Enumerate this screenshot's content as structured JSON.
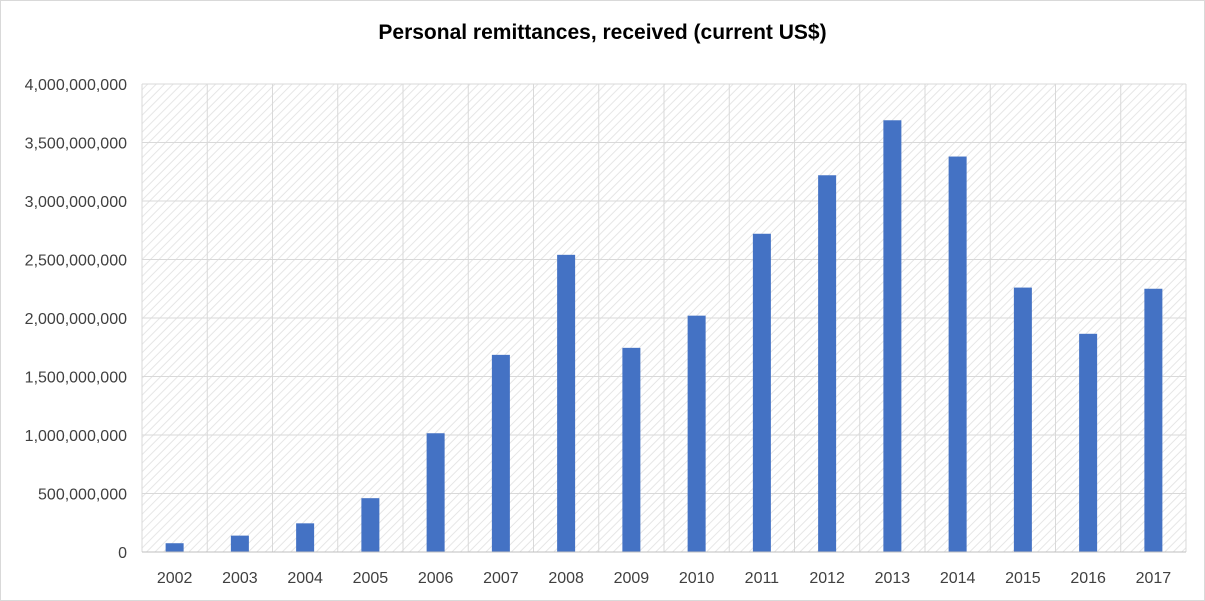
{
  "chart_data": {
    "type": "bar",
    "title": "Personal remittances, received (current US$)",
    "xlabel": "",
    "ylabel": "",
    "categories": [
      "2002",
      "2003",
      "2004",
      "2005",
      "2006",
      "2007",
      "2008",
      "2009",
      "2010",
      "2011",
      "2012",
      "2013",
      "2014",
      "2015",
      "2016",
      "2017"
    ],
    "series": [
      {
        "values": [
          75000000,
          140000000,
          245000000,
          460000000,
          1015000000,
          1685000000,
          2540000000,
          1745000000,
          2020000000,
          2720000000,
          3220000000,
          3690000000,
          3380000000,
          2260000000,
          1865000000,
          2250000000
        ],
        "color": "#4472c4"
      }
    ],
    "ylim": [
      0,
      4000000000
    ],
    "yticks": [
      0,
      500000000,
      1000000000,
      1500000000,
      2000000000,
      2500000000,
      3000000000,
      3500000000,
      4000000000
    ],
    "ytick_labels": [
      "0",
      "500,000,000",
      "1,000,000,000",
      "1,500,000,000",
      "2,000,000,000",
      "2,500,000,000",
      "3,000,000,000",
      "3,500,000,000",
      "4,000,000,000"
    ],
    "grid": true,
    "legend": "none"
  }
}
